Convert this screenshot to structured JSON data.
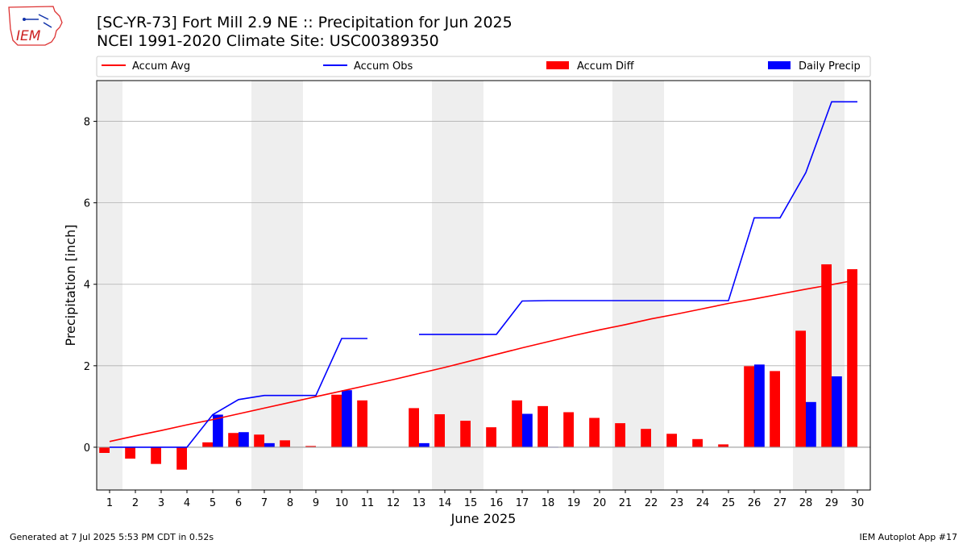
{
  "header": {
    "title_line1": "[SC-YR-73] Fort Mill 2.9 NE :: Precipitation for Jun 2025",
    "title_line2": "NCEI 1991-2020 Climate Site: USC00389350"
  },
  "logo": {
    "text": "IEM"
  },
  "footer": {
    "left": "Generated at 7 Jul 2025 5:53 PM CDT in 0.52s",
    "right": "IEM Autoplot App #17"
  },
  "colors": {
    "avg": "#ff0000",
    "obs": "#0000ff",
    "diff": "#ff0000",
    "daily": "#0000ff",
    "weekend": "#eeeeee"
  },
  "chart_data": {
    "type": "bar",
    "xlabel": "June 2025",
    "ylabel": "Precipitation [inch]",
    "xlim": [
      0.5,
      30.5
    ],
    "ylim": [
      -1.05,
      9.0
    ],
    "yticks": [
      0,
      2,
      4,
      6,
      8
    ],
    "grid": "y",
    "legend_position": "top",
    "days": [
      1,
      2,
      3,
      4,
      5,
      6,
      7,
      8,
      9,
      10,
      11,
      12,
      13,
      14,
      15,
      16,
      17,
      18,
      19,
      20,
      21,
      22,
      23,
      24,
      25,
      26,
      27,
      28,
      29,
      30
    ],
    "weekend_spans": [
      [
        0.5,
        1.5
      ],
      [
        6.5,
        8.5
      ],
      [
        13.5,
        15.5
      ],
      [
        20.5,
        22.5
      ],
      [
        27.5,
        29.5
      ]
    ],
    "series": [
      {
        "name": "Accum Avg",
        "kind": "line",
        "values": [
          0.14,
          0.28,
          0.41,
          0.55,
          0.68,
          0.82,
          0.96,
          1.1,
          1.24,
          1.38,
          1.52,
          1.66,
          1.81,
          1.96,
          2.12,
          2.28,
          2.44,
          2.59,
          2.74,
          2.88,
          3.01,
          3.15,
          3.27,
          3.4,
          3.53,
          3.64,
          3.76,
          3.88,
          3.99,
          4.11
        ]
      },
      {
        "name": "Accum Obs",
        "kind": "line",
        "values": [
          0.0,
          0.0,
          0.0,
          0.0,
          0.8,
          1.17,
          1.27,
          1.27,
          1.27,
          2.67,
          2.67,
          null,
          2.77,
          2.77,
          2.77,
          2.77,
          3.59,
          3.6,
          3.6,
          3.6,
          3.6,
          3.6,
          3.6,
          3.6,
          3.6,
          5.63,
          5.63,
          6.74,
          8.48,
          8.48
        ]
      },
      {
        "name": "Accum Diff",
        "kind": "bar",
        "values": [
          -0.14,
          -0.28,
          -0.41,
          -0.55,
          0.12,
          0.35,
          0.31,
          0.17,
          0.03,
          1.29,
          1.15,
          null,
          0.96,
          0.81,
          0.65,
          0.49,
          1.15,
          1.01,
          0.86,
          0.72,
          0.59,
          0.45,
          0.33,
          0.2,
          0.07,
          1.99,
          1.87,
          2.86,
          4.49,
          4.37
        ]
      },
      {
        "name": "Daily Precip",
        "kind": "bar",
        "values": [
          0,
          0,
          0,
          0,
          0.8,
          0.37,
          0.1,
          0,
          0,
          1.4,
          0,
          null,
          0.1,
          0,
          0,
          0,
          0.82,
          0.01,
          0,
          0,
          0,
          0,
          0,
          0,
          0,
          2.03,
          0,
          1.11,
          1.74,
          0
        ]
      }
    ]
  }
}
